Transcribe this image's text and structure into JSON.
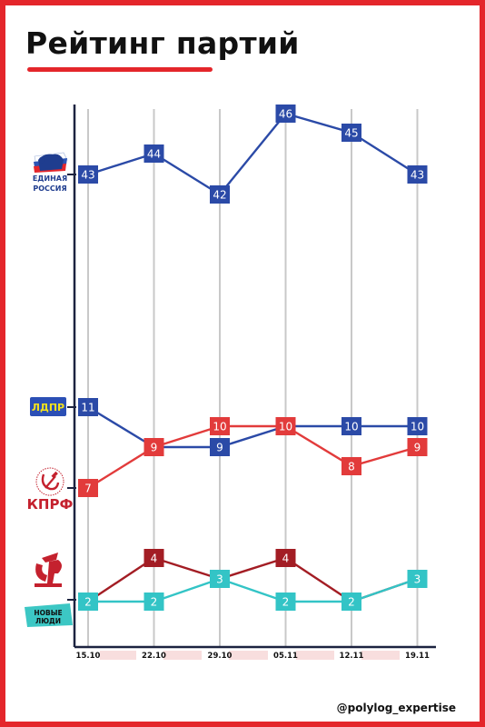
{
  "title": "Рейтинг партий",
  "watermark": "@polylog_expertise",
  "colors": {
    "frame": "#e4262b",
    "axis": "#1c2340",
    "gridline": "#c8c8c8",
    "date_band": "#f8dede"
  },
  "logos": {
    "er": {
      "line1": "ЕДИНАЯ",
      "line2": "РОССИЯ",
      "icon": "bear-icon",
      "color": "#1f3d8f"
    },
    "ldpr": {
      "text": "ЛДПР",
      "color": "#2b4fb5",
      "text_color": "#f4e21c"
    },
    "kprf": {
      "text": "КПРФ",
      "icon": "hammer-sickle-icon",
      "color": "#c4212e"
    },
    "sr": {
      "text": "СР",
      "icon": "sr-emblem-icon",
      "color": "#c4212e"
    },
    "nl": {
      "line1": "НОВЫЕ",
      "line2": "ЛЮДИ",
      "color": "#3cc7c4"
    }
  },
  "chart_data": {
    "type": "line",
    "categories": [
      "15.10",
      "22.10",
      "29.10",
      "05.11",
      "12.11",
      "19.11"
    ],
    "series": [
      {
        "key": "er",
        "color": "#2b4aa7",
        "values": [
          43,
          44,
          42,
          46,
          45,
          43
        ]
      },
      {
        "key": "ldpr",
        "color": "#2b4aa7",
        "values": [
          11,
          9,
          9,
          10,
          10,
          10
        ]
      },
      {
        "key": "kprf",
        "color": "#e23b3b",
        "values": [
          7,
          9,
          10,
          10,
          8,
          9
        ]
      },
      {
        "key": "sr",
        "color": "#a31d24",
        "values": [
          2,
          4,
          3,
          4,
          2,
          3
        ]
      },
      {
        "key": "nl",
        "color": "#33c4c6",
        "values": [
          2,
          2,
          3,
          2,
          2,
          3
        ]
      }
    ]
  }
}
